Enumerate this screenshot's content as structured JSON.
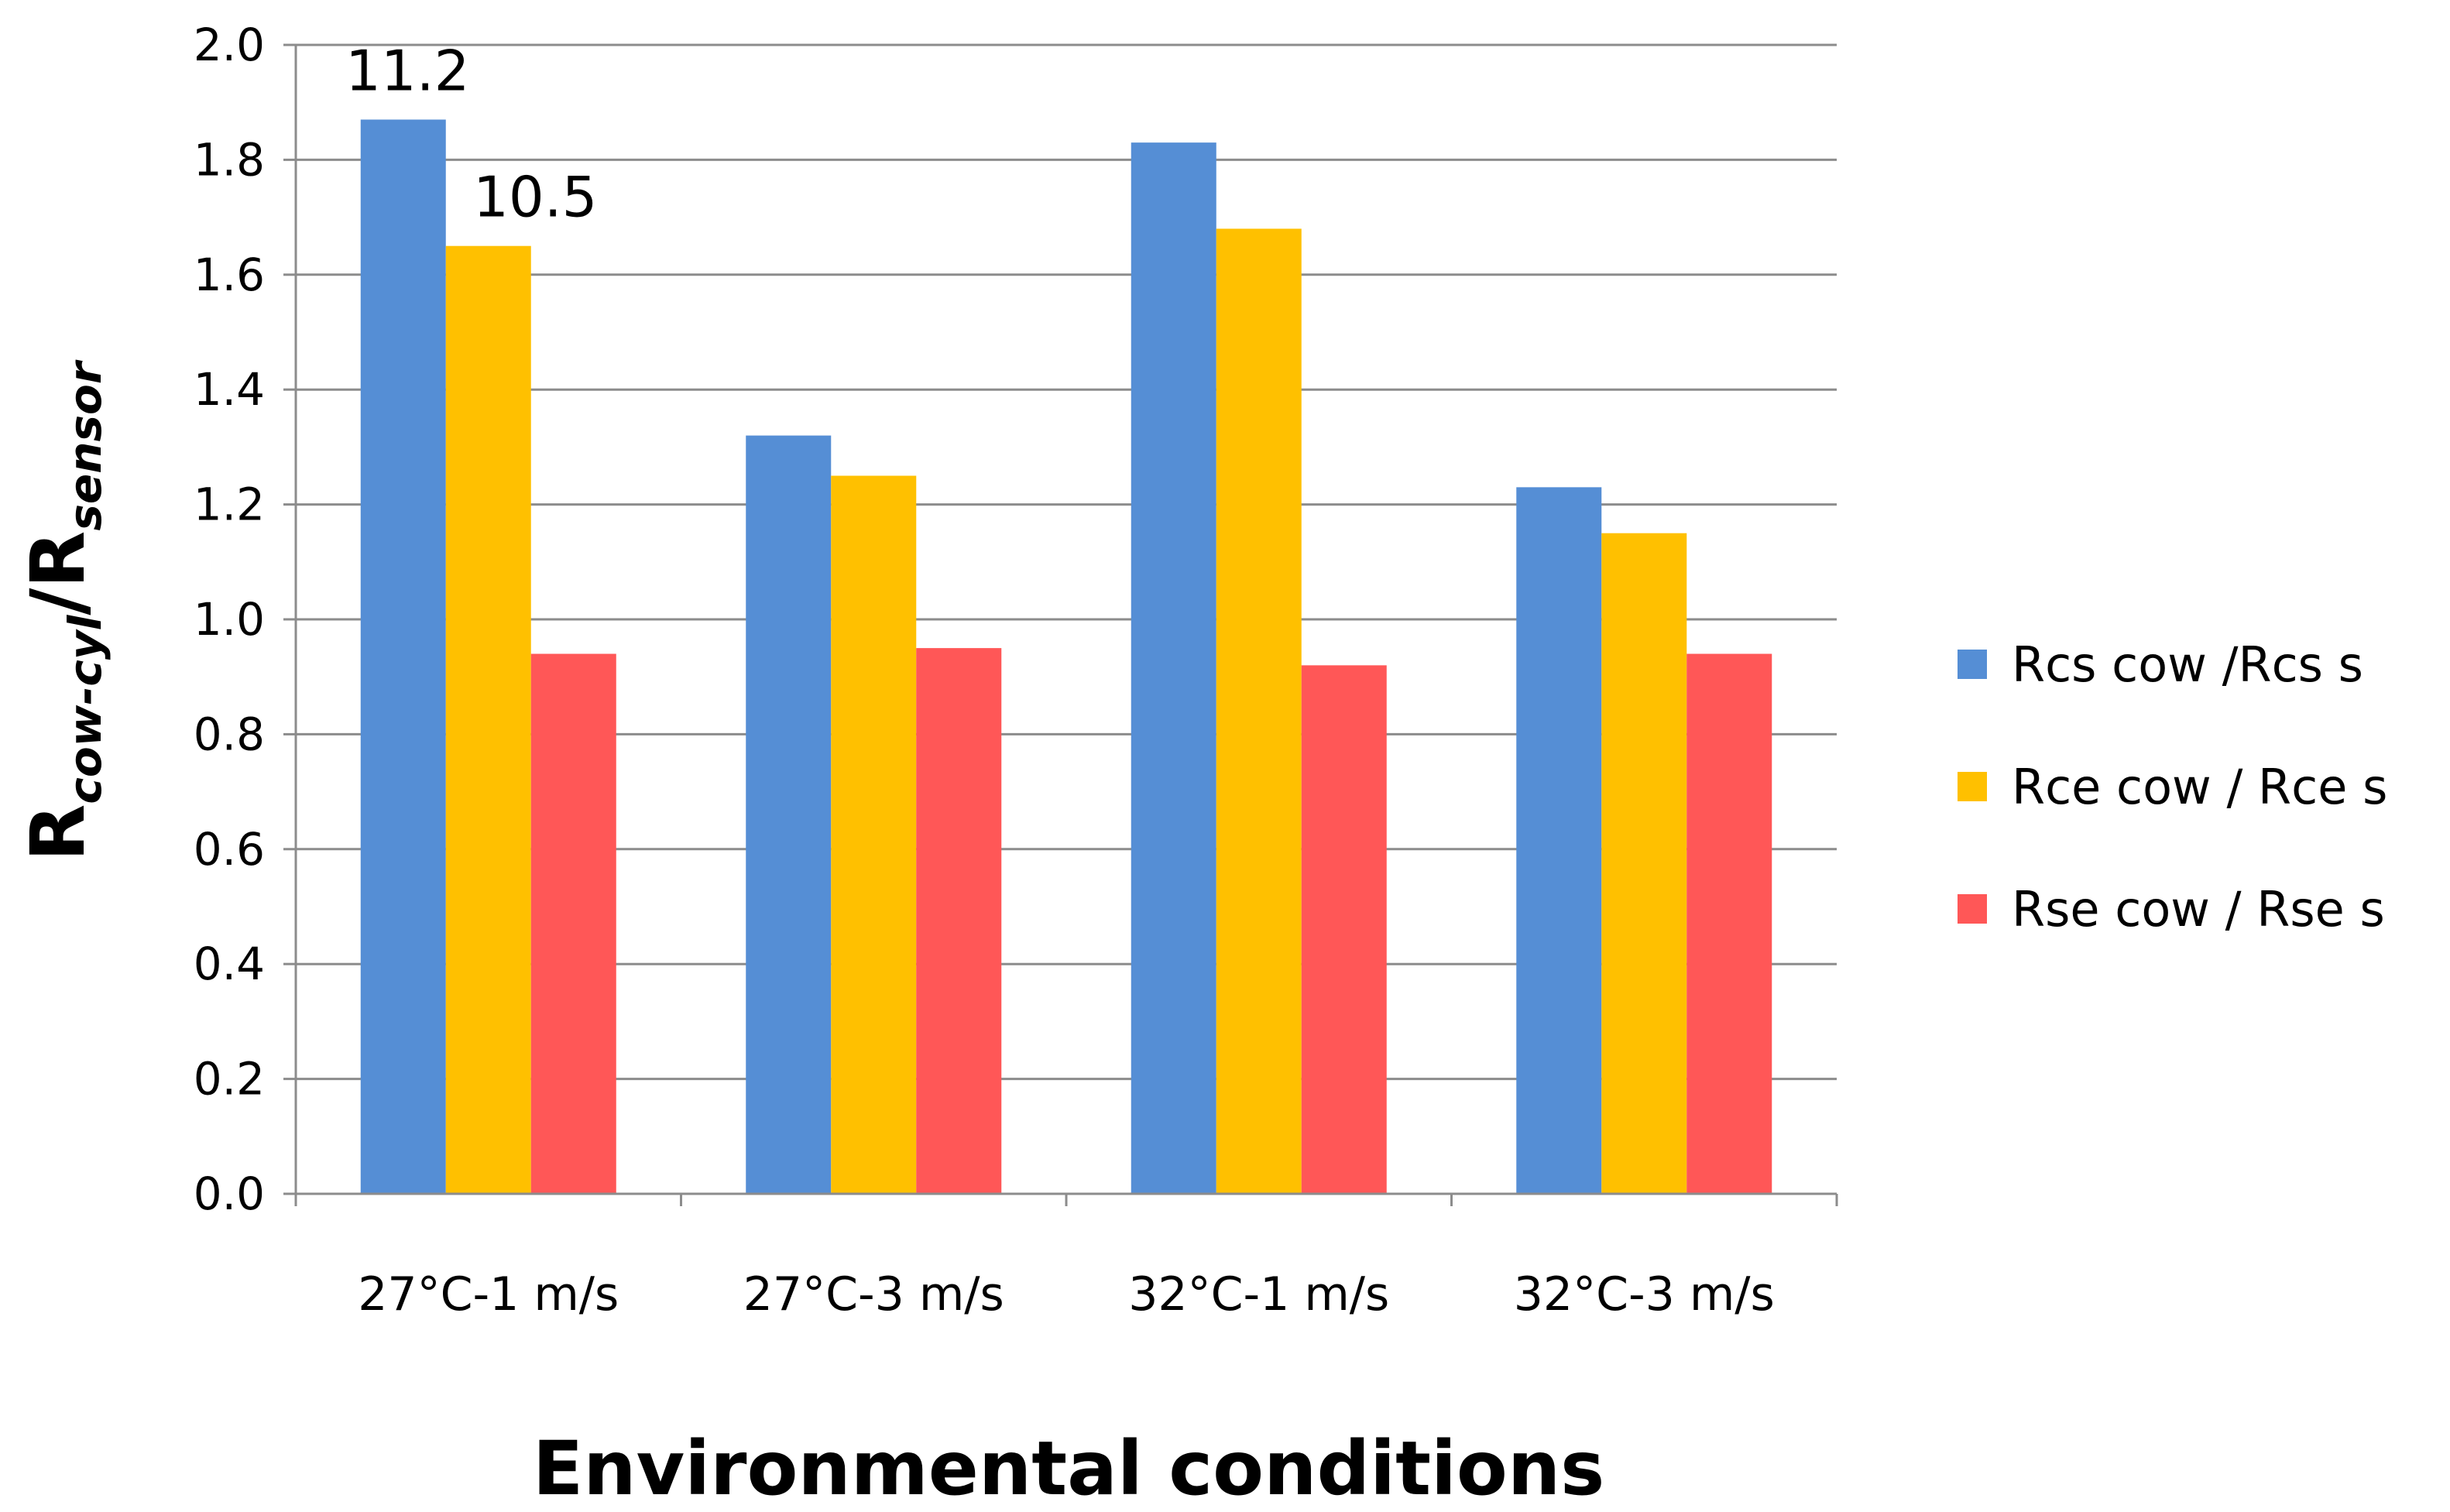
{
  "chart_data": {
    "type": "bar",
    "title": "",
    "xlabel": "Environmental conditions",
    "ylabel": {
      "main1": "R",
      "sub1": "cow-cyl",
      "slash": "/",
      "main2": "R",
      "sub2": "sensor"
    },
    "ylim": [
      0,
      2.0
    ],
    "yticks": [
      "0.0",
      "0.2",
      "0.4",
      "0.6",
      "0.8",
      "1.0",
      "1.2",
      "1.4",
      "1.6",
      "1.8",
      "2.0"
    ],
    "ytick_values": [
      0,
      0.2,
      0.4,
      0.6,
      0.8,
      1.0,
      1.2,
      1.4,
      1.6,
      1.8,
      2.0
    ],
    "grid": true,
    "legend_position": "right",
    "categories": [
      "27°C-1 m/s",
      "27°C-3 m/s",
      "32°C-1 m/s",
      "32°C-3 m/s"
    ],
    "series": [
      {
        "name": "Rcs cow /Rcs s",
        "color": "#558ed5",
        "values": [
          1.87,
          1.32,
          1.83,
          1.23
        ]
      },
      {
        "name": "Rce cow / Rce s",
        "color": "#ffc000",
        "values": [
          1.65,
          1.25,
          1.68,
          1.15
        ]
      },
      {
        "name": "Rse cow / Rse  s",
        "color": "#ff5757",
        "values": [
          0.94,
          0.95,
          0.92,
          0.94
        ]
      }
    ],
    "annotations": [
      {
        "text": "11.2",
        "series": 0,
        "category": 0
      },
      {
        "text": "10.5",
        "series": 1,
        "category": 0
      }
    ]
  }
}
